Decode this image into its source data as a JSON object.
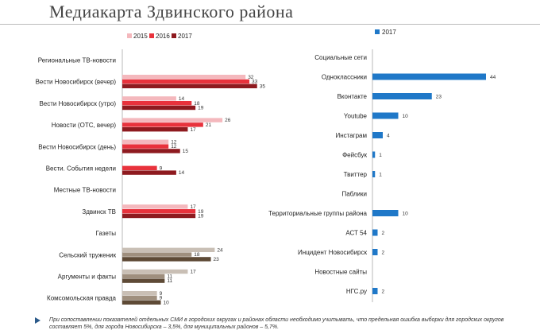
{
  "title": "Медиакарта Здвинского района",
  "footnote": "При сопоставлении показателей отдельных СМИ в городских округах и районах области необходимо учитывать, что предельная ошибка выборки для городских округов составляет 5%, для города Новосибирска – 3,5%, для муниципальных районов – 5,7%.",
  "colors": {
    "2015": "#f4b8bd",
    "2016": "#e8323c",
    "2017": "#8e1a1f",
    "press2015": "#c9bfb5",
    "press2016": "#9f8f7e",
    "press2017": "#5e4a36",
    "right2017": "#1f78c8"
  },
  "chart_data": [
    {
      "type": "bar",
      "orientation": "horizontal",
      "legend": [
        "2015",
        "2016",
        "2017"
      ],
      "rows": [
        {
          "label": "Региональные ТВ-новости",
          "header": true
        },
        {
          "label": "Вести Новосибирск (вечер)",
          "group": "tv",
          "values": [
            32,
            33,
            35
          ]
        },
        {
          "label": "Вести Новосибирск (утро)",
          "group": "tv",
          "values": [
            14,
            18,
            19
          ]
        },
        {
          "label": "Новости (ОТС, вечер)",
          "group": "tv",
          "values": [
            26,
            21,
            17
          ]
        },
        {
          "label": "Вести Новосибирск (день)",
          "group": "tv",
          "values": [
            12,
            12,
            15
          ]
        },
        {
          "label": "Вести. События недели",
          "group": "tv",
          "values": [
            null,
            9,
            14
          ]
        },
        {
          "label": "Местные ТВ-новости",
          "header": true
        },
        {
          "label": "Здвинск ТВ",
          "group": "tv",
          "values": [
            17,
            19,
            19
          ]
        },
        {
          "label": "Газеты",
          "header": true
        },
        {
          "label": "Сельский труженик",
          "group": "press",
          "values": [
            24,
            18,
            23
          ]
        },
        {
          "label": "Аргументы и факты",
          "group": "press",
          "values": [
            17,
            11,
            11
          ]
        },
        {
          "label": "Комсомольская правда",
          "group": "press",
          "values": [
            9,
            9,
            10
          ]
        }
      ]
    },
    {
      "type": "bar",
      "orientation": "horizontal",
      "legend": [
        "2017"
      ],
      "rows": [
        {
          "label": "Социальные сети",
          "header": true
        },
        {
          "label": "Одноклассники",
          "value": 44
        },
        {
          "label": "Вконтакте",
          "value": 23
        },
        {
          "label": "Youtube",
          "value": 10
        },
        {
          "label": "Инстаграм",
          "value": 4
        },
        {
          "label": "Фейсбук",
          "value": 1
        },
        {
          "label": "Твиттер",
          "value": 1
        },
        {
          "label": "Паблики",
          "header": true
        },
        {
          "label": "Территориальные группы района",
          "value": 10
        },
        {
          "label": "АСТ 54",
          "value": 2
        },
        {
          "label": "Инцидент Новосибирск",
          "value": 2
        },
        {
          "label": "Новостные сайты",
          "header": true
        },
        {
          "label": "НГС.ру",
          "value": 2
        }
      ]
    }
  ]
}
